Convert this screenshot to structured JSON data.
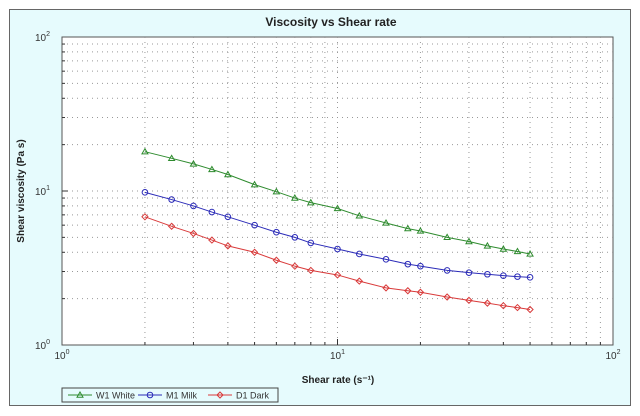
{
  "chart_data": {
    "type": "line",
    "title": "Viscosity vs Shear rate",
    "xlabel": "Shear rate (s⁻¹)",
    "ylabel": "Shear viscosity (Pa s)",
    "xscale": "log",
    "yscale": "log",
    "xlim": [
      1,
      100
    ],
    "ylim": [
      1,
      100
    ],
    "xticks": [
      {
        "base": "10",
        "exp": "0"
      },
      {
        "base": "10",
        "exp": "1"
      },
      {
        "base": "10",
        "exp": "2"
      }
    ],
    "yticks": [
      {
        "base": "10",
        "exp": "0"
      },
      {
        "base": "10",
        "exp": "1"
      },
      {
        "base": "10",
        "exp": "2"
      }
    ],
    "grid": true,
    "legend_position": "bottom-left",
    "x": [
      2,
      2.5,
      3,
      3.5,
      4,
      5,
      6,
      7,
      8,
      10,
      12,
      15,
      18,
      20,
      25,
      30,
      35,
      40,
      45,
      50
    ],
    "series": [
      {
        "name": "W1 White",
        "color": "#2e8b2e",
        "marker": "triangle",
        "values": [
          18,
          16.3,
          15,
          13.8,
          12.8,
          11,
          9.9,
          9.0,
          8.4,
          7.7,
          6.9,
          6.2,
          5.7,
          5.5,
          5.0,
          4.7,
          4.4,
          4.2,
          4.05,
          3.9
        ]
      },
      {
        "name": "M1 Milk",
        "color": "#2b2bb8",
        "marker": "circle",
        "values": [
          9.8,
          8.8,
          8.0,
          7.3,
          6.8,
          6.0,
          5.4,
          5.0,
          4.6,
          4.2,
          3.9,
          3.6,
          3.35,
          3.25,
          3.05,
          2.95,
          2.88,
          2.82,
          2.78,
          2.75
        ]
      },
      {
        "name": "D1 Dark",
        "color": "#d93a3a",
        "marker": "diamond",
        "values": [
          6.8,
          5.9,
          5.3,
          4.8,
          4.4,
          4.0,
          3.55,
          3.25,
          3.05,
          2.85,
          2.6,
          2.35,
          2.25,
          2.2,
          2.05,
          1.95,
          1.87,
          1.8,
          1.75,
          1.7
        ]
      }
    ]
  }
}
